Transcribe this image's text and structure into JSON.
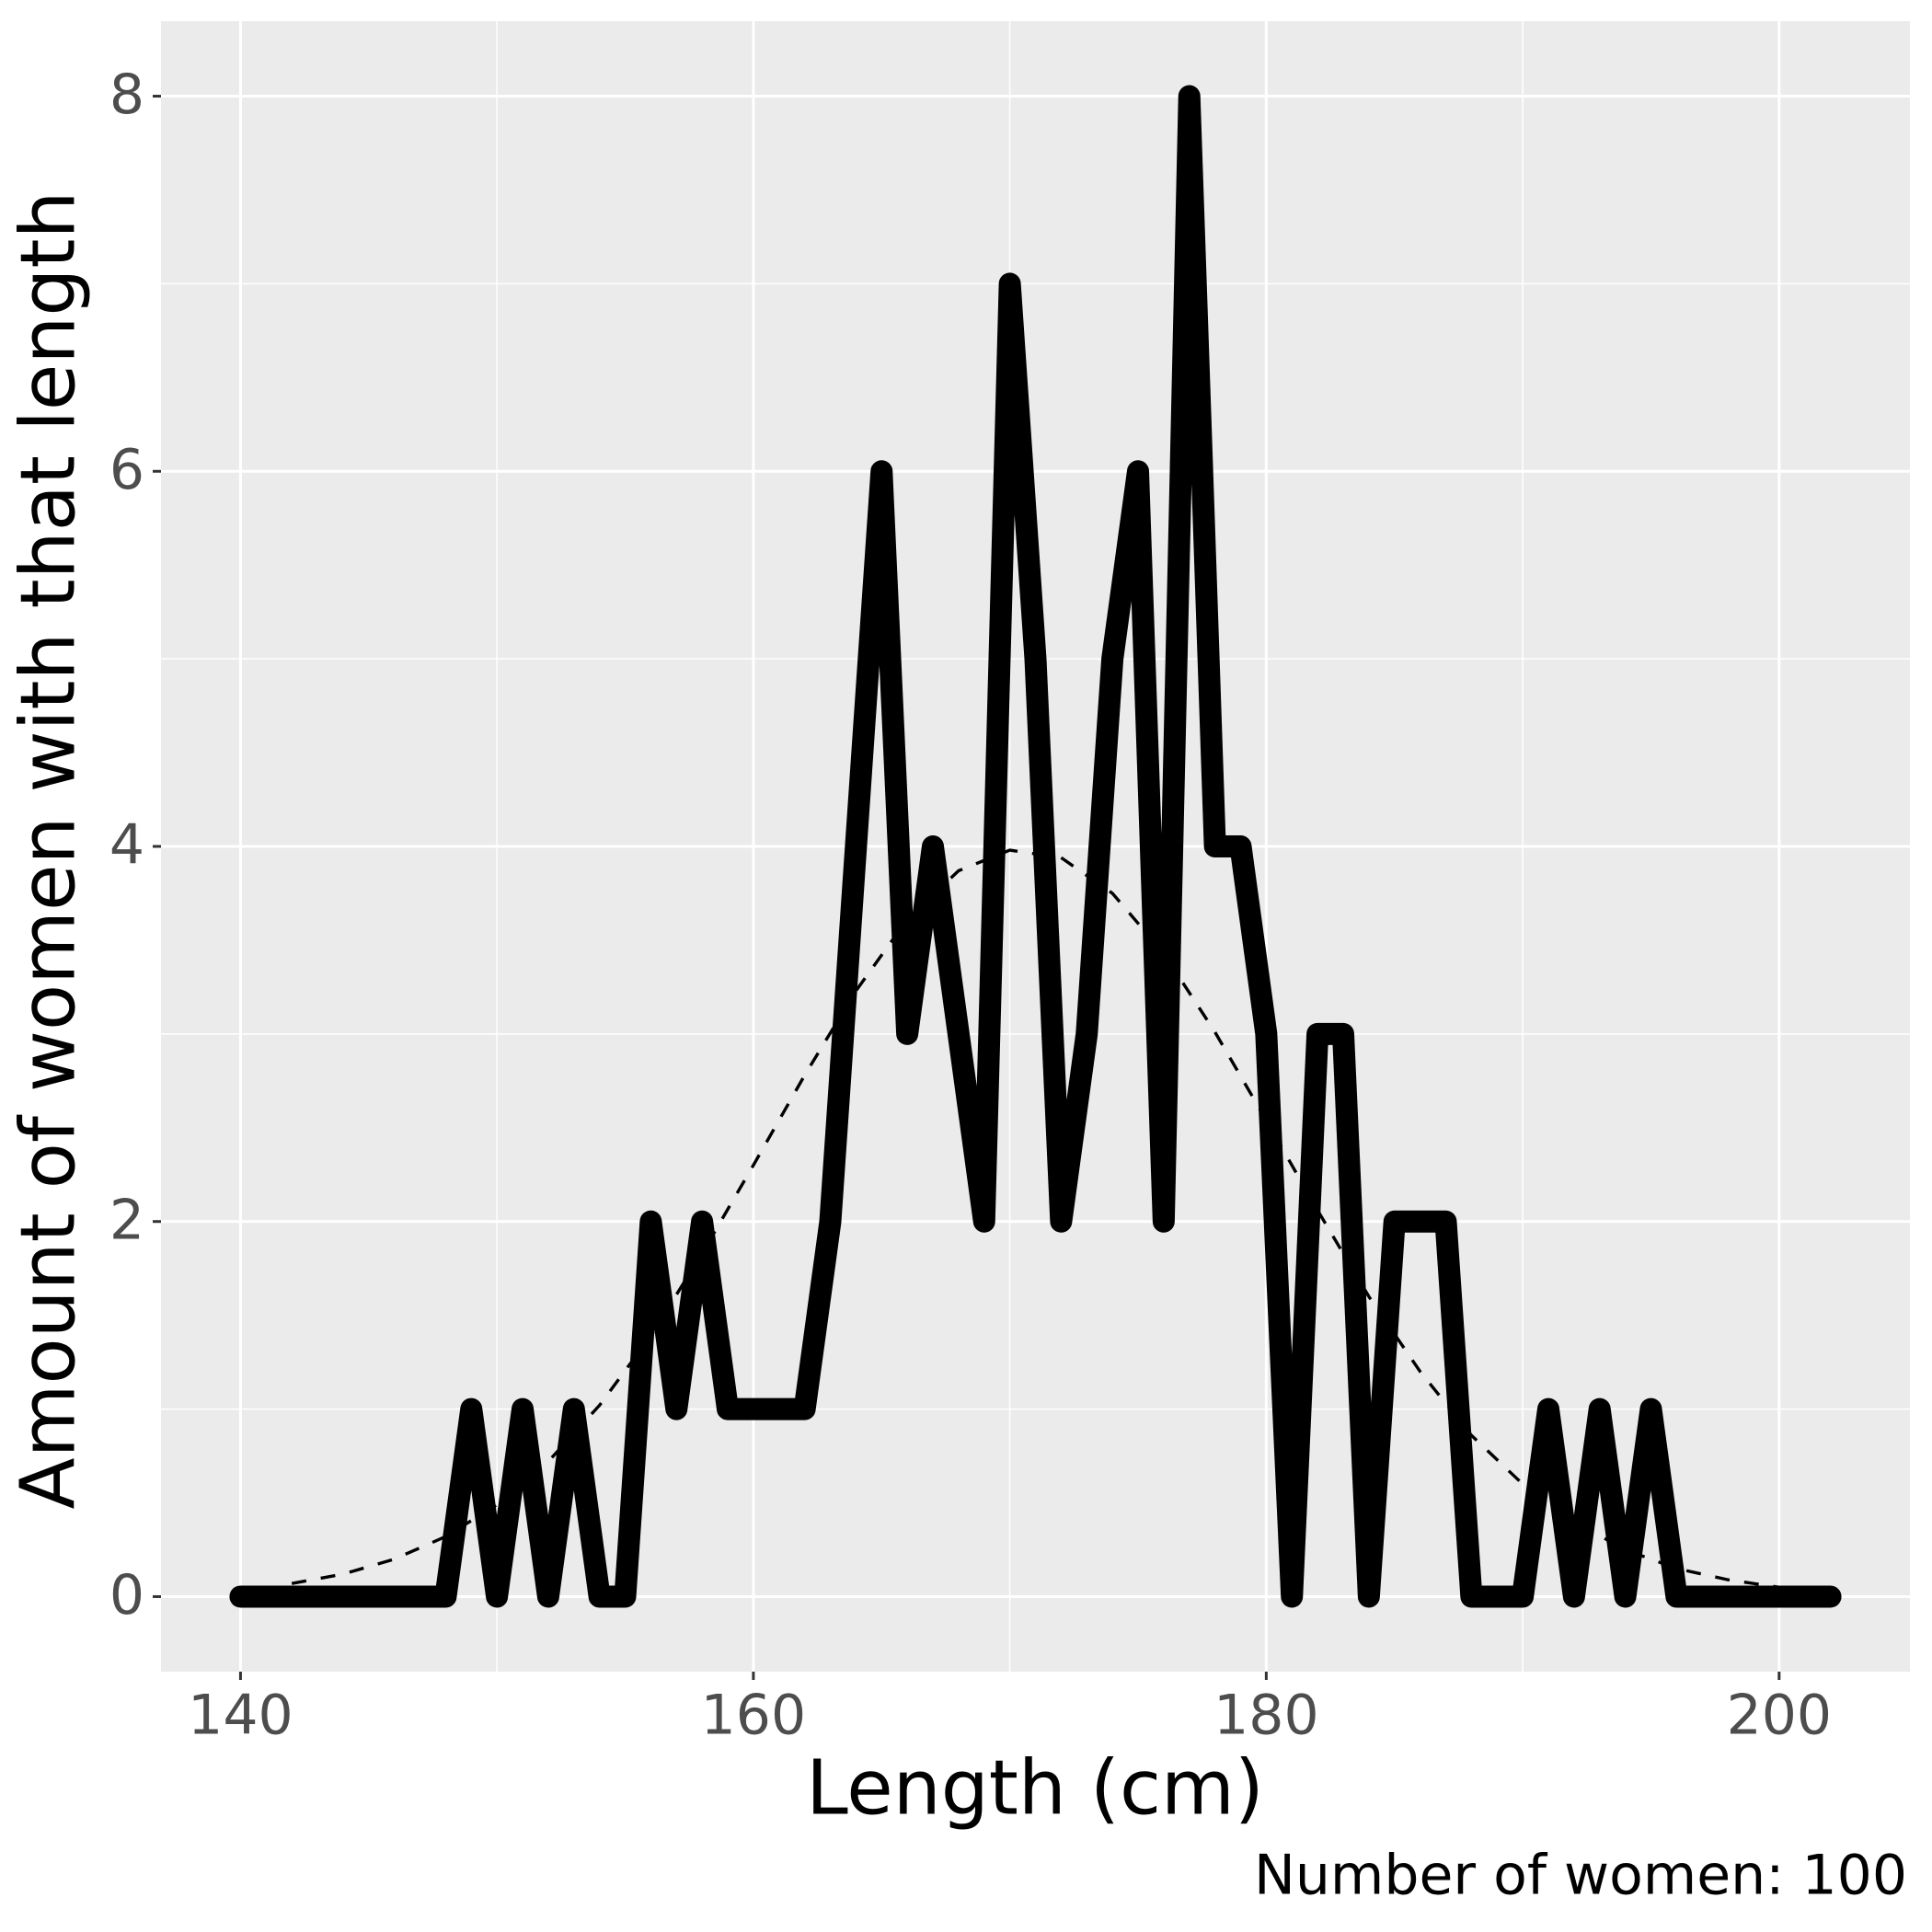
{
  "chart_data": {
    "type": "line",
    "x_label": "Length (cm)",
    "y_label": "Amount of women with that length",
    "caption": "Number of women: 100",
    "series": [
      {
        "color": "#000000",
        "style": "solid",
        "x": [
          140,
          141,
          142,
          143,
          144,
          145,
          146,
          147,
          148,
          149,
          150,
          151,
          152,
          153,
          154,
          155,
          156,
          157,
          158,
          159,
          160,
          161,
          162,
          163,
          164,
          165,
          166,
          167,
          168,
          169,
          170,
          171,
          172,
          173,
          174,
          175,
          176,
          177,
          178,
          179,
          180,
          181,
          182,
          183,
          184,
          185,
          186,
          187,
          188,
          189,
          190,
          191,
          192,
          193,
          194,
          195,
          196,
          197,
          198,
          199,
          200,
          201,
          202
        ],
        "values": [
          0,
          0,
          0,
          0,
          0,
          0,
          0,
          0,
          0,
          1,
          0,
          1,
          0,
          1,
          0,
          0,
          2,
          1,
          2,
          1,
          1,
          1,
          1,
          2,
          4,
          6,
          3,
          4,
          3,
          2,
          7,
          5,
          2,
          3,
          5,
          6,
          2,
          8,
          4,
          4,
          3,
          0,
          3,
          3,
          0,
          2,
          2,
          2,
          0,
          0,
          0,
          1,
          0,
          1,
          0,
          1,
          0,
          0,
          0,
          0,
          0,
          0,
          0
        ]
      },
      {
        "color": "#000000",
        "style": "dashed",
        "x": [
          142,
          144,
          146,
          148,
          150,
          152,
          154,
          156,
          158,
          160,
          162,
          164,
          166,
          168,
          170,
          172,
          174,
          176,
          178,
          180,
          182,
          184,
          186,
          188,
          190,
          192,
          194,
          196,
          198,
          200
        ],
        "values": [
          0.07,
          0.12,
          0.2,
          0.32,
          0.49,
          0.72,
          1.02,
          1.39,
          1.83,
          2.3,
          2.78,
          3.23,
          3.61,
          3.87,
          3.98,
          3.94,
          3.75,
          3.43,
          3.01,
          2.54,
          2.06,
          1.6,
          1.2,
          0.86,
          0.6,
          0.4,
          0.25,
          0.15,
          0.09,
          0.05
        ]
      }
    ],
    "xlim": [
      136.9,
      205.1
    ],
    "xticks": [
      140,
      160,
      180,
      200
    ],
    "xminor": [
      150,
      170,
      190
    ],
    "ylim": [
      -0.4,
      8.4
    ],
    "yticks": [
      0,
      2,
      4,
      6,
      8
    ],
    "yminor": [
      1,
      3,
      5,
      7
    ],
    "grid": true,
    "panel_color": "#ebebeb"
  }
}
